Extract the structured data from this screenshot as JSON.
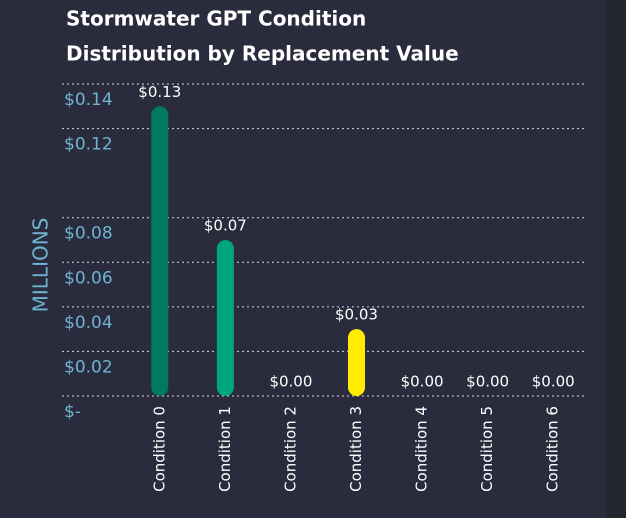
{
  "chart_data": {
    "type": "bar",
    "title": [
      "Stormwater GPT Condition",
      "Distribution by Replacement Value"
    ],
    "y_label": "MILLIONS",
    "categories": [
      "Condition 0",
      "Condition 1",
      "Condition 2",
      "Condition 3",
      "Condition 4",
      "Condition 5",
      "Condition 6"
    ],
    "values": [
      0.13,
      0.07,
      0,
      0.03,
      0,
      0,
      0
    ],
    "value_labels": [
      "$0.13",
      "$0.07",
      "$0.00",
      "$0.03",
      "$0.00",
      "$0.00",
      "$0.00"
    ],
    "colors": [
      "#007a5c",
      "#00a67d",
      "#00a67d",
      "#ffec00",
      "#00a67d",
      "#00a67d",
      "#00a67d"
    ],
    "ylim": [
      0,
      0.14
    ],
    "yticks": [
      {
        "value": 0,
        "label": "$-"
      },
      {
        "value": 0.02,
        "label": "$0.02"
      },
      {
        "value": 0.04,
        "label": "$0.04"
      },
      {
        "value": 0.06,
        "label": "$0.06"
      },
      {
        "value": 0.08,
        "label": "$0.08"
      },
      {
        "value": 0.12,
        "label": "$0.12"
      },
      {
        "value": 0.14,
        "label": "$0.14"
      }
    ],
    "grid": true
  }
}
